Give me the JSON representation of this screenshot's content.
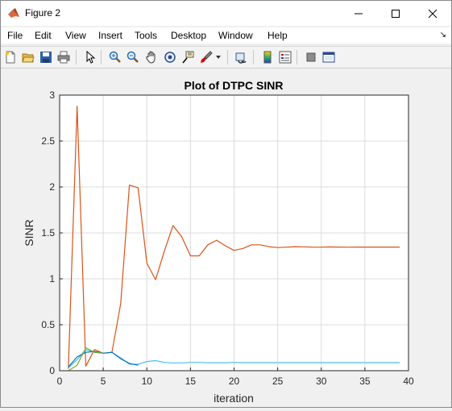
{
  "window": {
    "title": "Figure 2"
  },
  "menu": [
    "File",
    "Edit",
    "View",
    "Insert",
    "Tools",
    "Desktop",
    "Window",
    "Help"
  ],
  "toolbar": {
    "icons": [
      "new-figure-icon",
      "open-file-icon",
      "save-icon",
      "print-icon",
      "select-arrow-icon",
      "zoom-in-icon",
      "zoom-out-icon",
      "pan-hand-icon",
      "rotate-3d-icon",
      "data-cursor-icon",
      "brush-icon",
      "brush-dropdown-icon",
      "link-plot-icon",
      "colorbar-icon",
      "legend-icon",
      "hide-plot-tools-icon",
      "show-plot-tools-icon"
    ]
  },
  "chart_data": {
    "type": "line",
    "title": "Plot of DTPC SINR",
    "xlabel": "iteration",
    "ylabel": "SINR",
    "xlim": [
      0,
      40
    ],
    "ylim": [
      0,
      3
    ],
    "xticks": [
      "0",
      "5",
      "10",
      "15",
      "20",
      "25",
      "30",
      "35",
      "40"
    ],
    "yticks": [
      "0",
      "0.5",
      "1",
      "1.5",
      "2",
      "2.5",
      "3"
    ],
    "grid": true,
    "series": [
      {
        "color": "#d95319",
        "x": [
          1,
          2,
          3,
          4,
          5,
          6,
          7,
          8,
          9,
          10,
          11,
          12,
          13,
          14,
          15,
          16,
          17,
          18,
          19,
          20,
          21,
          22,
          23,
          24,
          25,
          26,
          27,
          28,
          29,
          30,
          31,
          32,
          33,
          34,
          35,
          36,
          37,
          38,
          39
        ],
        "values": [
          0.02,
          2.88,
          0.05,
          0.23,
          0.19,
          0.2,
          0.73,
          2.02,
          1.99,
          1.17,
          0.99,
          1.3,
          1.58,
          1.46,
          1.25,
          1.25,
          1.37,
          1.42,
          1.36,
          1.31,
          1.33,
          1.37,
          1.37,
          1.35,
          1.34,
          1.345,
          1.35,
          1.348,
          1.345,
          1.345,
          1.347,
          1.346,
          1.345,
          1.346,
          1.346,
          1.346,
          1.346,
          1.346,
          1.346
        ]
      },
      {
        "color": "#4dbeee",
        "x": [
          1,
          2,
          3,
          4,
          5,
          6,
          7,
          8,
          9,
          10,
          11,
          12,
          13,
          14,
          15,
          16,
          17,
          18,
          19,
          20,
          21,
          22,
          23,
          24,
          25,
          26,
          27,
          28,
          29,
          30,
          31,
          32,
          33,
          34,
          35,
          36,
          37,
          38,
          39
        ],
        "values": [
          0.03,
          0.12,
          0.23,
          0.2,
          0.19,
          0.2,
          0.14,
          0.07,
          0.07,
          0.1,
          0.11,
          0.09,
          0.085,
          0.085,
          0.09,
          0.09,
          0.087,
          0.087,
          0.087,
          0.09,
          0.088,
          0.088,
          0.088,
          0.088,
          0.088,
          0.088,
          0.088,
          0.088,
          0.088,
          0.088,
          0.088,
          0.088,
          0.088,
          0.088,
          0.088,
          0.088,
          0.088,
          0.088,
          0.088
        ]
      },
      {
        "color": "#0072bd",
        "x": [
          1,
          2,
          3,
          4,
          5,
          6,
          7,
          8,
          9
        ],
        "values": [
          0.04,
          0.15,
          0.2,
          0.21,
          0.19,
          0.2,
          0.13,
          0.08,
          0.06
        ]
      },
      {
        "color": "#77ac30",
        "x": [
          1,
          2,
          3,
          4,
          5
        ],
        "values": [
          0.0,
          0.06,
          0.25,
          0.2,
          0.19
        ]
      }
    ]
  }
}
